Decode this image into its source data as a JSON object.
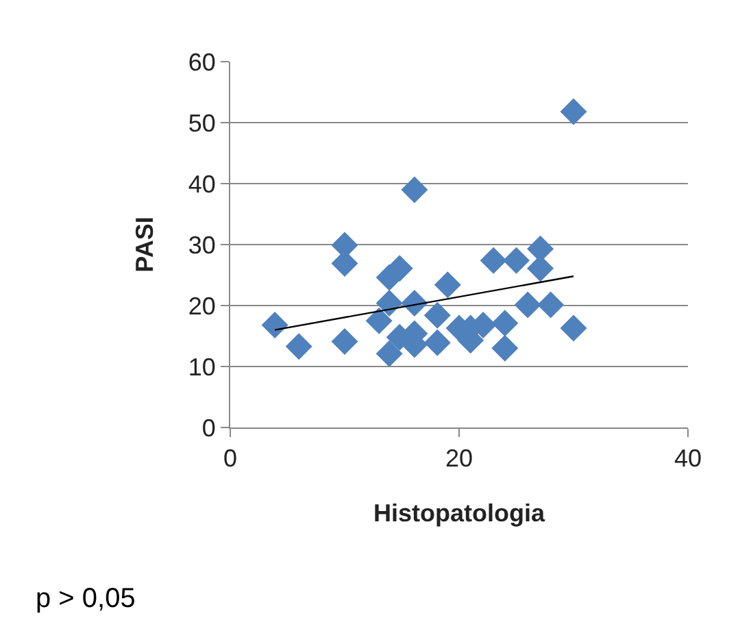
{
  "chart_data": {
    "type": "scatter",
    "xlabel": "Histopatologia",
    "ylabel": "PASI",
    "marker": "diamond",
    "grid": "y",
    "xlim": [
      0,
      40
    ],
    "xticks": [
      0,
      20,
      40
    ],
    "ylim": [
      0,
      60
    ],
    "yticks": [
      0,
      10,
      20,
      30,
      40,
      50,
      60
    ],
    "annotations": [
      "p > 0,05"
    ],
    "series": [
      {
        "color": "#4f81bd",
        "x": [
          3.9,
          6,
          10,
          10,
          10,
          13,
          13.9,
          13.9,
          14.8,
          13.9,
          14.8,
          16.1,
          16.1,
          16.1,
          16.1,
          18.1,
          18.1,
          19,
          20,
          21,
          21,
          22.1,
          23,
          24,
          24,
          25,
          26,
          27.1,
          27.1,
          28,
          30,
          30
        ],
        "values": [
          16.8,
          13.3,
          29.9,
          26.9,
          14.1,
          17.5,
          20.4,
          24.6,
          26.1,
          12.1,
          14.8,
          39,
          20.4,
          15.4,
          13.6,
          18.4,
          13.9,
          23.4,
          16.3,
          14.3,
          16.3,
          16.8,
          27.4,
          17.1,
          13,
          27.4,
          20.1,
          29.3,
          26.1,
          20.1,
          51.8,
          16.3
        ]
      },
      {
        "type": "line",
        "color": "#000000",
        "marker": "none",
        "x": [
          3.9,
          30
        ],
        "values": [
          16,
          24.8
        ]
      }
    ]
  }
}
